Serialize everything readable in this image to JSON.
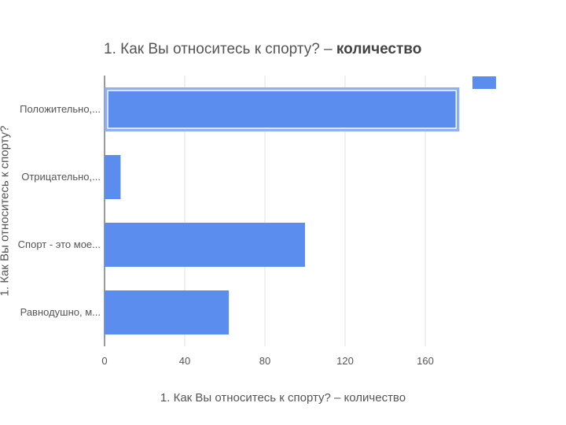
{
  "title_main": "1. Как Вы относитесь к спорту? – ",
  "title_bold": "количество",
  "chart_data": {
    "type": "bar",
    "orientation": "horizontal",
    "title": "1. Как Вы относитесь к спорту? – количество",
    "xlabel": "1. Как Вы относитесь к спорту? – количество",
    "ylabel": "1. Как Вы относитесь к спорту?",
    "categories": [
      "Положительно,...",
      "Отрицательно,...",
      "Спорт - это мое...",
      "Равнодушно, м..."
    ],
    "values": [
      177,
      8,
      100,
      62
    ],
    "xlim": [
      0,
      180
    ],
    "xticks": [
      0,
      40,
      80,
      120,
      160
    ],
    "grid": true,
    "legend": "top-right",
    "bar_color": "#5b8def",
    "selected_bar_index": 0
  }
}
